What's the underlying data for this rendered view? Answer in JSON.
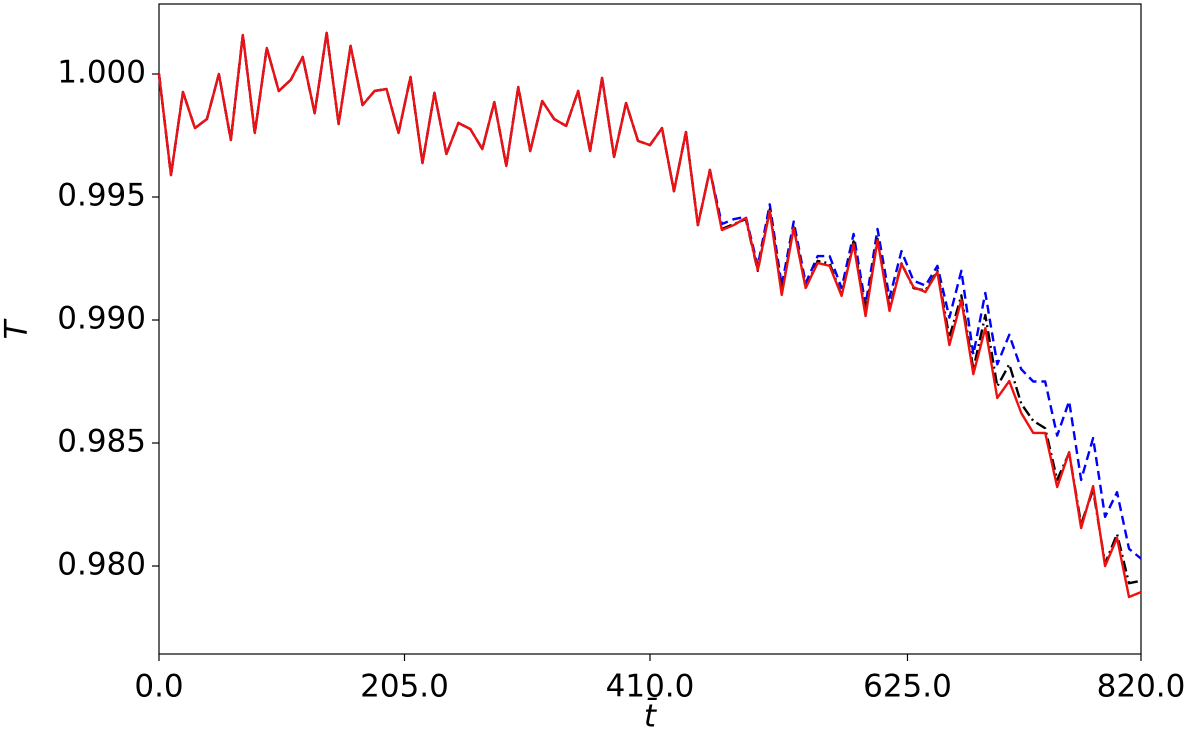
{
  "chart_data": {
    "type": "line",
    "xlabel": "t̄",
    "ylabel": "T̄",
    "x": [
      0,
      10,
      20,
      30,
      40,
      50,
      60,
      70,
      80,
      90,
      100,
      110,
      120,
      130,
      140,
      150,
      160,
      170,
      180,
      190,
      200,
      210,
      220,
      230,
      240,
      250,
      260,
      270,
      280,
      290,
      300,
      310,
      320,
      330,
      340,
      350,
      360,
      370,
      380,
      390,
      400,
      410,
      420,
      430,
      440,
      450,
      460,
      470,
      480,
      490,
      500,
      510,
      520,
      530,
      540,
      550,
      560,
      570,
      580,
      590,
      600,
      610,
      620,
      630,
      640,
      650,
      660,
      670,
      680,
      690,
      700,
      710,
      720,
      730,
      740,
      750,
      760,
      770,
      780,
      790,
      800,
      810,
      820
    ],
    "series": [
      {
        "color": "#0000ff",
        "dash": "dashed",
        "values": [
          1.0,
          0.99589,
          0.99927,
          0.9978,
          0.99817,
          1.0,
          0.99732,
          1.00159,
          0.9976,
          1.00106,
          0.99931,
          0.99976,
          1.00069,
          0.99841,
          1.00167,
          0.99797,
          1.00114,
          0.99874,
          0.99931,
          0.99939,
          0.9976,
          0.99988,
          0.99638,
          0.99923,
          0.99675,
          0.99801,
          0.99776,
          0.99695,
          0.99886,
          0.99626,
          0.99947,
          0.99687,
          0.9989,
          0.99817,
          0.99789,
          0.99931,
          0.99687,
          0.99984,
          0.99663,
          0.99882,
          0.99728,
          0.99711,
          0.9978,
          0.99524,
          0.99764,
          0.99386,
          0.9961,
          0.9939,
          0.9941,
          0.9942,
          0.9922,
          0.9947,
          0.9914,
          0.994,
          0.9915,
          0.9926,
          0.9926,
          0.9913,
          0.9935,
          0.9906,
          0.9937,
          0.9909,
          0.9928,
          0.9916,
          0.9914,
          0.9922,
          0.9901,
          0.992,
          0.9886,
          0.9911,
          0.9882,
          0.9894,
          0.988,
          0.9875,
          0.9875,
          0.9853,
          0.9867,
          0.9835,
          0.9852,
          0.982,
          0.983,
          0.9807,
          0.9803
        ]
      },
      {
        "color": "#000000",
        "dash": "dashdot",
        "values": [
          1.0,
          0.99589,
          0.99927,
          0.9978,
          0.99817,
          1.0,
          0.99732,
          1.00159,
          0.9976,
          1.00106,
          0.99931,
          0.99976,
          1.00069,
          0.99841,
          1.00167,
          0.99797,
          1.00114,
          0.99874,
          0.99931,
          0.99939,
          0.9976,
          0.99988,
          0.99638,
          0.99923,
          0.99675,
          0.99801,
          0.99776,
          0.99695,
          0.99886,
          0.99626,
          0.99947,
          0.99687,
          0.9989,
          0.99817,
          0.99789,
          0.99931,
          0.99687,
          0.99984,
          0.99663,
          0.99882,
          0.99728,
          0.99711,
          0.9978,
          0.99524,
          0.99764,
          0.99386,
          0.9961,
          0.9937,
          0.9939,
          0.9941,
          0.992,
          0.9945,
          0.9911,
          0.9938,
          0.9913,
          0.9924,
          0.9923,
          0.991,
          0.9932,
          0.9903,
          0.9933,
          0.9905,
          0.9923,
          0.9913,
          0.9912,
          0.992,
          0.9893,
          0.991,
          0.988,
          0.9902,
          0.9873,
          0.9882,
          0.9866,
          0.9859,
          0.9856,
          0.9835,
          0.9846,
          0.9817,
          0.9831,
          0.9801,
          0.9813,
          0.9793,
          0.9794
        ]
      },
      {
        "color": "#ee1111",
        "dash": "solid",
        "values": [
          1.0,
          0.99589,
          0.99927,
          0.9978,
          0.99817,
          1.0,
          0.99732,
          1.00159,
          0.9976,
          1.00106,
          0.99931,
          0.99976,
          1.00069,
          0.99841,
          1.00167,
          0.99797,
          1.00114,
          0.99874,
          0.99931,
          0.99939,
          0.9976,
          0.99988,
          0.99638,
          0.99923,
          0.99675,
          0.99801,
          0.99776,
          0.99695,
          0.99886,
          0.99626,
          0.99947,
          0.99687,
          0.9989,
          0.99817,
          0.99789,
          0.99931,
          0.99687,
          0.99984,
          0.99663,
          0.99882,
          0.99728,
          0.99711,
          0.9978,
          0.99524,
          0.99764,
          0.99386,
          0.9961,
          0.99366,
          0.99386,
          0.99415,
          0.99203,
          0.99443,
          0.99102,
          0.99374,
          0.9913,
          0.99232,
          0.9922,
          0.99098,
          0.99309,
          0.99016,
          0.99325,
          0.99037,
          0.99228,
          0.99134,
          0.99114,
          0.99195,
          0.98898,
          0.99081,
          0.9878,
          0.98967,
          0.98683,
          0.98752,
          0.98622,
          0.98541,
          0.98541,
          0.98321,
          0.98463,
          0.98154,
          0.98325,
          0.98,
          0.98114,
          0.97874,
          0.97894
        ]
      }
    ],
    "xlim": [
      0,
      820
    ],
    "xticks": [
      {
        "value": 0,
        "label": "0.0"
      },
      {
        "value": 205,
        "label": "205.0"
      },
      {
        "value": 410,
        "label": "410.0"
      },
      {
        "value": 625,
        "label": "625.0"
      },
      {
        "value": 820,
        "label": "820.0"
      }
    ],
    "ylim": [
      0.976423,
      1.002846
    ],
    "yticks": [
      {
        "value": 0.98,
        "label": "0.980"
      },
      0.985,
      {
        "value": 0.99,
        "label": "0.990"
      },
      0.995,
      {
        "value": 1,
        "label": "1.000"
      }
    ],
    "grid": false
  }
}
